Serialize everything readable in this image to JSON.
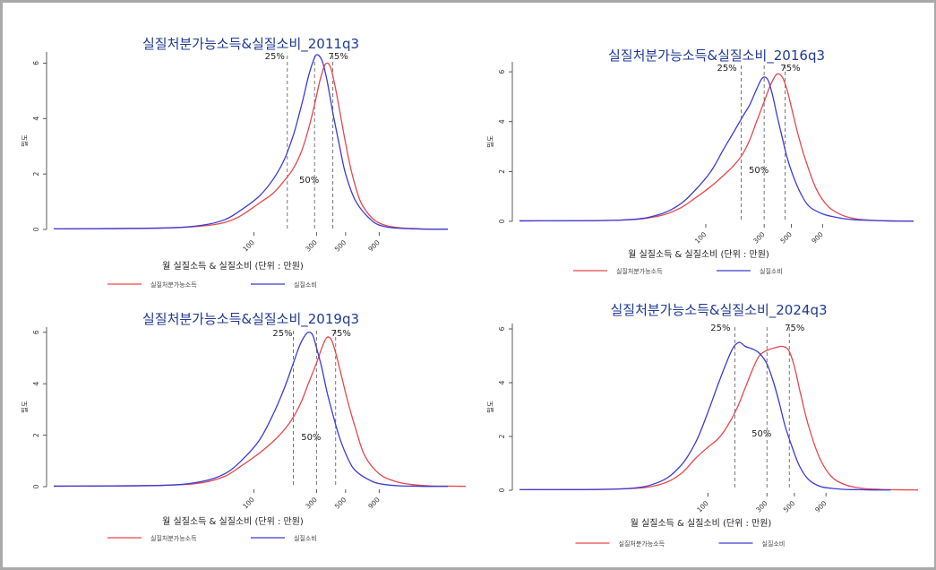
{
  "colors": {
    "income": "#e8474b",
    "consumption": "#3b3bd8",
    "axis": "#333333",
    "title": "#1f3a93",
    "frame": "#a9a9a9"
  },
  "chart_data": [
    {
      "type": "line",
      "title": "실질처분가능소득&실질소비_2011q3",
      "xlabel": "월 실질소득 & 실질소비 (단위 : 만원)",
      "ylabel": "밀도",
      "x_scale": "log",
      "x_ticks": [
        "100",
        "300",
        "500",
        "900"
      ],
      "y_ticks": [
        "0",
        "2",
        "4",
        "6"
      ],
      "ylim": [
        0,
        6.4
      ],
      "percentiles": [
        {
          "label": "25%",
          "x": 180
        },
        {
          "label": "50%",
          "x": 290
        },
        {
          "label": "75%",
          "x": 400
        }
      ],
      "legend": [
        "실질처분가능소득",
        "실질소비"
      ],
      "series": [
        {
          "name": "실질처분가능소득",
          "x": [
            3,
            20,
            40,
            60,
            80,
            110,
            140,
            170,
            200,
            230,
            260,
            290,
            320,
            350,
            380,
            410,
            450,
            500,
            560,
            650,
            800,
            1000,
            1300,
            1700,
            2200,
            3000
          ],
          "y": [
            0.02,
            0.05,
            0.12,
            0.25,
            0.5,
            0.95,
            1.3,
            1.75,
            2.2,
            2.8,
            3.6,
            4.5,
            5.4,
            5.95,
            5.9,
            5.3,
            4.3,
            3.1,
            2.0,
            1.0,
            0.4,
            0.15,
            0.06,
            0.03,
            0.01,
            0.01
          ]
        },
        {
          "name": "실질소비",
          "x": [
            3,
            20,
            40,
            60,
            80,
            110,
            140,
            170,
            200,
            220,
            240,
            260,
            280,
            300,
            330,
            360,
            400,
            450,
            500,
            600,
            800,
            1000,
            1300,
            1700,
            2200,
            3000
          ],
          "y": [
            0.02,
            0.05,
            0.15,
            0.35,
            0.7,
            1.2,
            1.8,
            2.5,
            3.4,
            4.1,
            4.8,
            5.5,
            6.0,
            6.3,
            6.1,
            5.4,
            4.2,
            3.0,
            2.0,
            1.0,
            0.3,
            0.1,
            0.04,
            0.02,
            0.01,
            0.01
          ]
        }
      ]
    },
    {
      "type": "line",
      "title": "실질처분가능소득&실질소비_2016q3",
      "xlabel": "월 실질소득 & 실질소비 (단위 : 만원)",
      "ylabel": "밀도",
      "x_scale": "log",
      "x_ticks": [
        "100",
        "300",
        "500",
        "900"
      ],
      "y_ticks": [
        "0",
        "2",
        "4",
        "6"
      ],
      "ylim": [
        0,
        6.4
      ],
      "percentiles": [
        {
          "label": "25%",
          "x": 195
        },
        {
          "label": "50%",
          "x": 300
        },
        {
          "label": "75%",
          "x": 445
        }
      ],
      "legend": [
        "실질처분가능소득",
        "실질소비"
      ],
      "series": [
        {
          "name": "실질처분가능소득",
          "x": [
            3,
            20,
            40,
            60,
            80,
            110,
            140,
            170,
            200,
            230,
            260,
            300,
            340,
            380,
            420,
            460,
            500,
            560,
            650,
            800,
            1000,
            1300,
            1700,
            2200,
            3000,
            5000
          ],
          "y": [
            0.02,
            0.05,
            0.2,
            0.5,
            0.9,
            1.4,
            1.85,
            2.25,
            2.7,
            3.3,
            4.0,
            4.8,
            5.5,
            5.9,
            5.8,
            5.3,
            4.6,
            3.6,
            2.5,
            1.3,
            0.6,
            0.25,
            0.1,
            0.05,
            0.02,
            0.01
          ]
        },
        {
          "name": "실질소비",
          "x": [
            3,
            20,
            40,
            60,
            80,
            110,
            140,
            170,
            200,
            230,
            260,
            290,
            320,
            350,
            380,
            420,
            460,
            520,
            600,
            700,
            900,
            1200,
            1600,
            2200,
            3000,
            5000
          ],
          "y": [
            0.02,
            0.05,
            0.25,
            0.65,
            1.2,
            2.0,
            2.9,
            3.6,
            4.2,
            4.7,
            5.3,
            5.75,
            5.7,
            5.1,
            4.3,
            3.4,
            2.6,
            1.8,
            1.1,
            0.6,
            0.3,
            0.15,
            0.07,
            0.04,
            0.02,
            0.01
          ]
        }
      ]
    },
    {
      "type": "line",
      "title": "실질처분가능소득&실질소비_2019q3",
      "xlabel": "월 실질소득 & 실질소비 (단위 : 만원)",
      "ylabel": "밀도",
      "x_scale": "log",
      "x_ticks": [
        "100",
        "300",
        "500",
        "900"
      ],
      "y_ticks": [
        "0",
        "2",
        "4",
        "6"
      ],
      "ylim": [
        0,
        6.2
      ],
      "percentiles": [
        {
          "label": "25%",
          "x": 200
        },
        {
          "label": "50%",
          "x": 300
        },
        {
          "label": "75%",
          "x": 420
        }
      ],
      "legend": [
        "실질처분가능소득",
        "실질소비"
      ],
      "series": [
        {
          "name": "실질처분가능소득",
          "x": [
            3,
            20,
            40,
            60,
            80,
            110,
            140,
            170,
            200,
            230,
            260,
            300,
            330,
            360,
            390,
            420,
            460,
            520,
            600,
            700,
            900,
            1200,
            1600,
            2200,
            3000,
            5000
          ],
          "y": [
            0.02,
            0.05,
            0.15,
            0.4,
            0.8,
            1.3,
            1.75,
            2.2,
            2.7,
            3.3,
            4.0,
            4.8,
            5.4,
            5.8,
            5.7,
            5.2,
            4.4,
            3.3,
            2.2,
            1.2,
            0.5,
            0.2,
            0.08,
            0.03,
            0.02,
            0.01
          ]
        },
        {
          "name": "실질소비",
          "x": [
            3,
            20,
            40,
            60,
            80,
            110,
            140,
            170,
            200,
            220,
            240,
            260,
            280,
            300,
            330,
            360,
            400,
            450,
            520,
            600,
            800,
            1000,
            1300,
            1700,
            2200,
            3000
          ],
          "y": [
            0.02,
            0.05,
            0.2,
            0.5,
            1.0,
            1.8,
            2.8,
            3.8,
            4.8,
            5.4,
            5.8,
            6.0,
            5.9,
            5.4,
            4.6,
            3.7,
            2.8,
            1.9,
            1.1,
            0.6,
            0.2,
            0.08,
            0.03,
            0.02,
            0.01,
            0.01
          ]
        }
      ]
    },
    {
      "type": "line",
      "title": "실질처분가능소득&실질소비_2024q3",
      "xlabel": "월 실질소득 & 실질소비 (단위 : 만원)",
      "ylabel": "밀도",
      "x_scale": "log",
      "x_ticks": [
        "100",
        "300",
        "500",
        "900"
      ],
      "y_ticks": [
        "0",
        "2",
        "4",
        "6"
      ],
      "ylim": [
        0,
        6.2
      ],
      "percentiles": [
        {
          "label": "25%",
          "x": 165
        },
        {
          "label": "50%",
          "x": 300
        },
        {
          "label": "75%",
          "x": 455
        }
      ],
      "legend": [
        "실질처분가능소득",
        "실질소비"
      ],
      "series": [
        {
          "name": "실질처분가능소득",
          "x": [
            3,
            20,
            40,
            60,
            80,
            100,
            120,
            140,
            170,
            200,
            230,
            260,
            300,
            350,
            400,
            450,
            500,
            560,
            650,
            800,
            1000,
            1300,
            1700,
            2200,
            3000,
            5000
          ],
          "y": [
            0.02,
            0.05,
            0.2,
            0.6,
            1.2,
            1.6,
            1.9,
            2.3,
            3.0,
            3.8,
            4.5,
            5.0,
            5.2,
            5.3,
            5.35,
            5.2,
            4.6,
            3.6,
            2.4,
            1.2,
            0.5,
            0.2,
            0.08,
            0.04,
            0.02,
            0.01
          ]
        },
        {
          "name": "실질소비",
          "x": [
            3,
            20,
            40,
            60,
            80,
            100,
            120,
            140,
            160,
            180,
            200,
            230,
            260,
            300,
            340,
            380,
            420,
            480,
            550,
            650,
            800,
            1000,
            1300,
            1700,
            2200,
            3000
          ],
          "y": [
            0.02,
            0.05,
            0.3,
            0.9,
            1.8,
            2.9,
            3.9,
            4.7,
            5.3,
            5.5,
            5.35,
            5.25,
            5.1,
            4.7,
            4.0,
            3.2,
            2.4,
            1.6,
            0.9,
            0.4,
            0.15,
            0.07,
            0.03,
            0.02,
            0.01,
            0.01
          ]
        }
      ]
    }
  ]
}
